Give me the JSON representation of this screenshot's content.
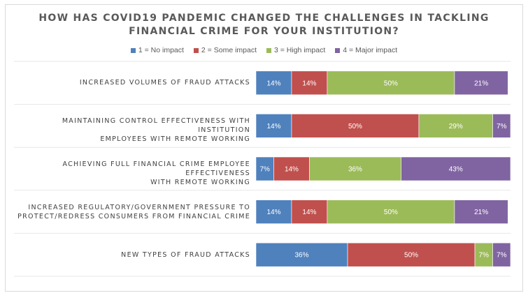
{
  "chart_data": {
    "type": "bar",
    "orientation": "horizontal",
    "stacked": true,
    "title_lines": [
      "HOW HAS COVID19 PANDEMIC CHANGED THE CHALLENGES IN TACKLING",
      "FINANCIAL CRIME FOR YOUR INSTITUTION?"
    ],
    "categories": [
      [
        "INCREASED VOLUMES OF FRAUD ATTACKS"
      ],
      [
        "MAINTAINING CONTROL EFFECTIVENESS WITH INSTITUTION",
        "EMPLOYEES WITH REMOTE WORKING"
      ],
      [
        "ACHIEVING FULL FINANCIAL CRIME EMPLOYEE EFFECTIVENESS",
        "WITH REMOTE WORKING"
      ],
      [
        "INCREASED REGULATORY/GOVERNMENT PRESSURE TO",
        "PROTECT/REDRESS CONSUMERS FROM FINANCIAL CRIME"
      ],
      [
        "NEW TYPES OF FRAUD ATTACKS"
      ]
    ],
    "series": [
      {
        "name": "1 = No impact",
        "color": "#4f81bd",
        "values": [
          14,
          14,
          7,
          14,
          36
        ],
        "labels": [
          "14%",
          "14%",
          "7%",
          "14%",
          "36%"
        ]
      },
      {
        "name": "2 = Some impact",
        "color": "#c0504d",
        "values": [
          14,
          50,
          14,
          14,
          50
        ],
        "labels": [
          "14%",
          "50%",
          "14%",
          "14%",
          "50%"
        ]
      },
      {
        "name": "3 = High impact",
        "color": "#9bbb59",
        "values": [
          50,
          29,
          36,
          50,
          7
        ],
        "labels": [
          "50%",
          "29%",
          "36%",
          "50%",
          "7%"
        ]
      },
      {
        "name": "4 = Major impact",
        "color": "#8064a2",
        "values": [
          21,
          7,
          43,
          21,
          7
        ],
        "labels": [
          "21%",
          "7%",
          "43%",
          "21%",
          "7%"
        ]
      }
    ],
    "xlim": [
      0,
      100
    ],
    "legend_position": "top",
    "grid": true,
    "xlabel": "",
    "ylabel": ""
  }
}
